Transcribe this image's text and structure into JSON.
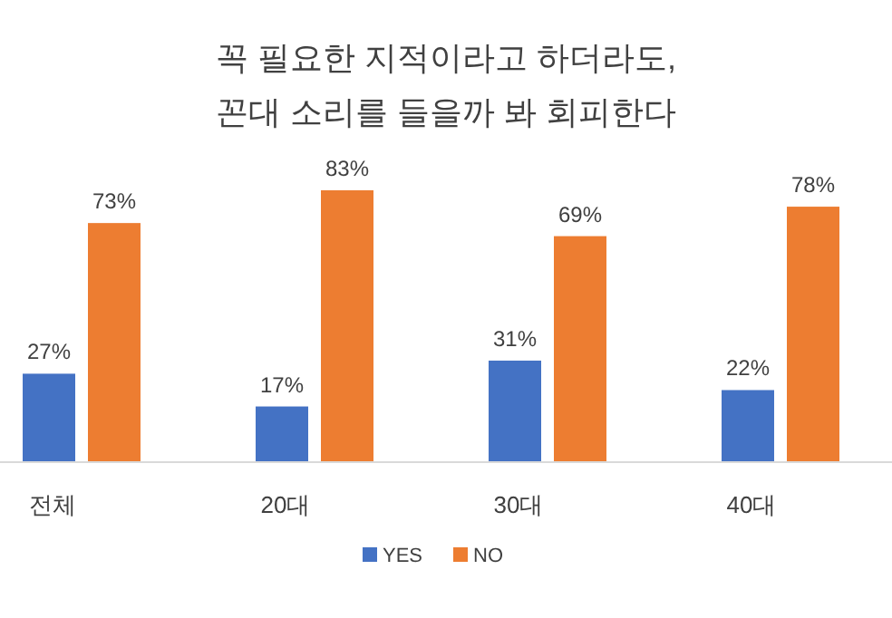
{
  "chart_data": {
    "type": "bar",
    "title": "꼭 필요한 지적이라고 하더라도,\n꼰대 소리를 들을까 봐 회피한다",
    "categories": [
      "전체",
      "20대",
      "30대",
      "40대"
    ],
    "series": [
      {
        "name": "YES",
        "color": "#4472c4",
        "values": [
          27,
          17,
          31,
          22
        ],
        "value_labels": [
          "27%",
          "17%",
          "31%",
          "22%"
        ]
      },
      {
        "name": "NO",
        "color": "#ed7d31",
        "values": [
          73,
          83,
          69,
          78
        ],
        "value_labels": [
          "73%",
          "83%",
          "69%",
          "78%"
        ]
      }
    ],
    "legend": "bottom"
  }
}
